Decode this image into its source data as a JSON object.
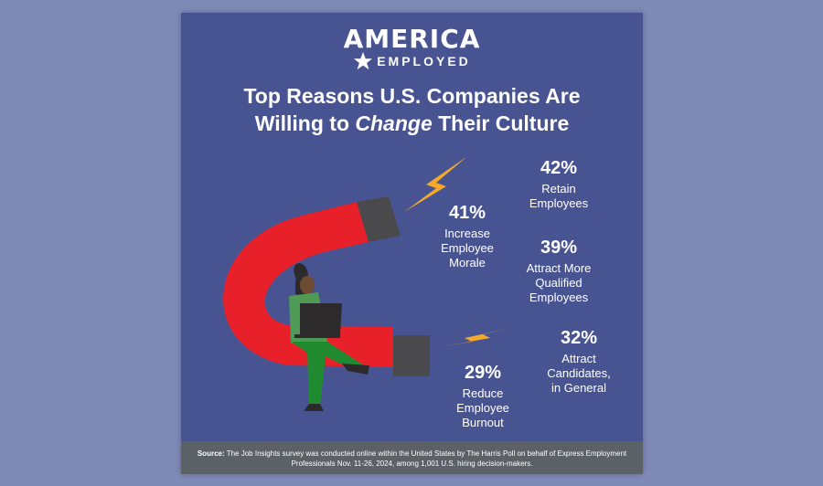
{
  "logo": {
    "main": "AMERICA",
    "sub": "EMPLOYED"
  },
  "title": {
    "part1": "Top Reasons U.S. Companies Are",
    "part2": "Willing to ",
    "emph": "Change",
    "part3": " Their Culture"
  },
  "source": {
    "label": "Source:",
    "text": " The Job Insights survey was conducted online within the United States by The Harris Poll on behalf of Express Employment Professionals Nov. 11-26, 2024, among 1,001 U.S. hiring decision-makers."
  },
  "colors": {
    "background": "#7f8ab6",
    "card": "#485492",
    "magnet": "#e8202a",
    "magnet_tip": "#4a4a4c",
    "bolt": "#f4a92c",
    "footer": "#5c6168"
  },
  "chart_data": {
    "type": "infographic",
    "title": "Top Reasons U.S. Companies Are Willing to Change Their Culture",
    "unit": "%",
    "items": [
      {
        "pct": "42%",
        "label": "Retain\nEmployees",
        "value": 42
      },
      {
        "pct": "41%",
        "label": "Increase\nEmployee\nMorale",
        "value": 41
      },
      {
        "pct": "39%",
        "label": "Attract More\nQualified\nEmployees",
        "value": 39
      },
      {
        "pct": "32%",
        "label": "Attract\nCandidates,\nin General",
        "value": 32
      },
      {
        "pct": "29%",
        "label": "Reduce\nEmployee\nBurnout",
        "value": 29
      }
    ]
  }
}
